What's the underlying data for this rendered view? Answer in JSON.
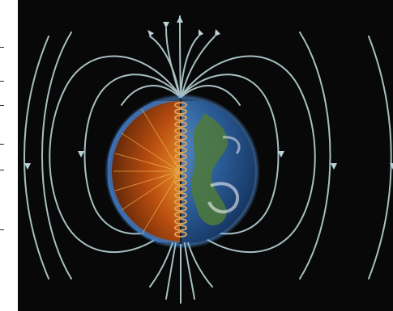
{
  "figure": {
    "subject": "earth-magnetic-field-illustration",
    "colors": {
      "background": "#080808",
      "field_lines": "#b9d3d7",
      "core_orange": "#e9821d",
      "core_dark": "#7a2c08",
      "ocean_blue": "#2c5e9a",
      "land_green": "#4f7a3a",
      "coil": "#d7a15a"
    },
    "icons": [
      "earth-globe-icon",
      "dynamo-coil-icon",
      "field-arrow-icon"
    ]
  }
}
